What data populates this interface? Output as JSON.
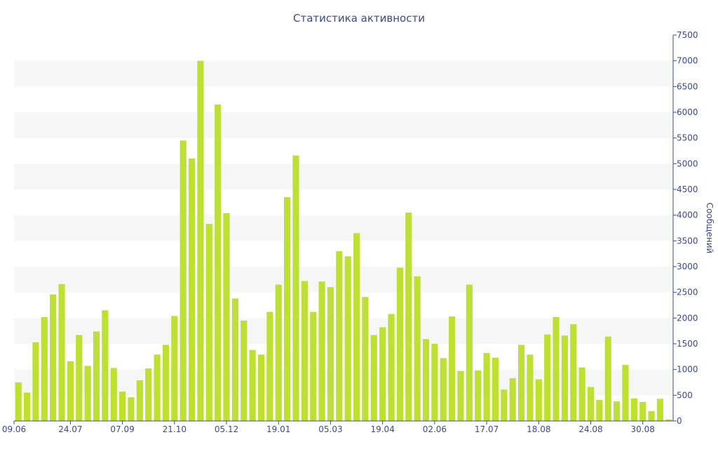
{
  "chart_data": {
    "type": "bar",
    "title": "Статистика активности",
    "ylabel": "Сообщений",
    "ylim": [
      0,
      7500
    ],
    "yticks": [
      0,
      500,
      1000,
      1500,
      2000,
      2500,
      3000,
      3500,
      4000,
      4500,
      5000,
      5500,
      6000,
      6500,
      7000,
      7500
    ],
    "x_tick_labels": [
      {
        "index": 0,
        "label": "09.06"
      },
      {
        "index": 6,
        "label": "24.07"
      },
      {
        "index": 12,
        "label": "07.09"
      },
      {
        "index": 18,
        "label": "21.10"
      },
      {
        "index": 24,
        "label": "05.12"
      },
      {
        "index": 30,
        "label": "19.01"
      },
      {
        "index": 36,
        "label": "05.03"
      },
      {
        "index": 42,
        "label": "19.04"
      },
      {
        "index": 48,
        "label": "02.06"
      },
      {
        "index": 54,
        "label": "17.07"
      },
      {
        "index": 60,
        "label": "18.08"
      },
      {
        "index": 66,
        "label": "24.08"
      },
      {
        "index": 72,
        "label": "30.08"
      }
    ],
    "grid": "horizontal bands",
    "bar_color": "#bde031",
    "values": [
      750,
      550,
      1530,
      2020,
      2460,
      2660,
      1160,
      1670,
      1070,
      1740,
      2150,
      1030,
      570,
      460,
      790,
      1020,
      1290,
      1480,
      2040,
      5450,
      5100,
      7000,
      3830,
      6150,
      4040,
      2380,
      1950,
      1380,
      1290,
      2120,
      2650,
      4350,
      5160,
      2720,
      2120,
      2710,
      2600,
      3300,
      3200,
      3650,
      2410,
      1670,
      1820,
      2080,
      2980,
      4050,
      2810,
      1590,
      1500,
      1220,
      2030,
      970,
      2650,
      980,
      1320,
      1230,
      610,
      830,
      1480,
      1290,
      810,
      1680,
      2020,
      1660,
      1880,
      1040,
      660,
      410,
      1640,
      380,
      1090,
      440,
      370,
      190,
      430,
      30
    ]
  }
}
